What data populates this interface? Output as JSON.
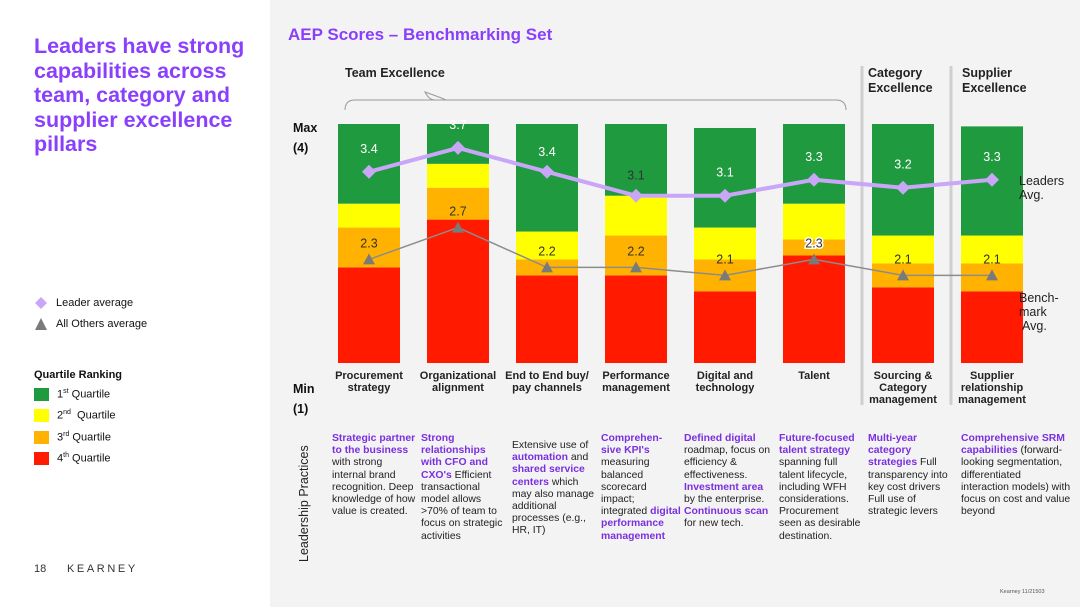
{
  "headline": "Leaders have strong capabilities across team, category and supplier excellence pillars",
  "legend": {
    "leader": {
      "label": "Leader average",
      "color": "#c9a6f7"
    },
    "others": {
      "label": "All Others average",
      "color": "#7a7a7a"
    }
  },
  "quartile": {
    "title": "Quartile Ranking",
    "items": [
      {
        "num": "1",
        "sup": "st",
        "word": " Quartile",
        "color": "#1f9a3e"
      },
      {
        "num": "2",
        "sup": "nd",
        "word": "  Quartile",
        "color": "#ffff00"
      },
      {
        "num": "3",
        "sup": "rd",
        "word": " Quartile",
        "color": "#ffb300"
      },
      {
        "num": "4",
        "sup": "th",
        "word": " Quartile",
        "color": "#ff1a00"
      }
    ]
  },
  "page_number": "18",
  "brand": "KEARNEY",
  "footer_note": "Kearney 11/21503",
  "chart_data": {
    "type": "bar",
    "title": "AEP Scores – Benchmarking Set",
    "pillars": [
      {
        "label": "Team Excellence"
      },
      {
        "label": "Category Excellence"
      },
      {
        "label": "Supplier Excellence"
      }
    ],
    "y_axis": {
      "max_label": "Max",
      "max_value_label": "(4)",
      "min_label": "Min",
      "min_value_label": "(1)",
      "range": [
        1,
        4
      ]
    },
    "categories": [
      "Procurement strategy",
      "Organizational alignment",
      "End to End buy/ pay channels",
      "Performance management",
      "Digital and technology",
      "Talent",
      "Sourcing & Category management",
      "Supplier relationship management"
    ],
    "quartile_boundaries": [
      [
        2.2,
        2.7,
        3.0,
        4.0
      ],
      [
        2.8,
        3.2,
        3.5,
        4.0
      ],
      [
        2.1,
        2.3,
        2.65,
        4.0
      ],
      [
        2.1,
        2.6,
        3.1,
        4.0
      ],
      [
        1.9,
        2.3,
        2.7,
        3.95
      ],
      [
        2.35,
        2.55,
        3.0,
        4.0
      ],
      [
        1.95,
        2.25,
        2.6,
        4.0
      ],
      [
        1.9,
        2.25,
        2.6,
        3.97
      ]
    ],
    "series": [
      {
        "name": "Leader average",
        "values": [
          3.4,
          3.7,
          3.4,
          3.1,
          3.1,
          3.3,
          3.2,
          3.3
        ]
      },
      {
        "name": "All Others average",
        "values": [
          2.3,
          2.7,
          2.2,
          2.2,
          2.1,
          2.3,
          2.1,
          2.1
        ]
      }
    ],
    "leader_label_values": [
      "3.4",
      "3.7",
      "3.4",
      "3.1",
      "3.1",
      "3.3",
      "3.2",
      "3.3"
    ],
    "others_label_values": [
      "2.3",
      "2.7",
      "2.2",
      "2.2",
      "2.1",
      "2.3",
      "2.1",
      "2.1"
    ],
    "series_end_labels": {
      "leaders": "Leaders Avg.",
      "benchmark": "Bench- mark Avg."
    }
  },
  "leadership": {
    "title": "Leadership Practices",
    "practices": [
      [
        {
          "t": "Strategic partner to the business",
          "h": true
        },
        {
          "t": " with strong internal brand recognition. Deep knowledge of how value is created.",
          "h": false
        }
      ],
      [
        {
          "t": "Strong relationships with CFO and CXO's",
          "h": true
        },
        {
          "t": " Efficient transactional model allows >70% of team to focus on strategic activities",
          "h": false
        }
      ],
      [
        {
          "t": "Extensive use of ",
          "h": false
        },
        {
          "t": "automation",
          "h": true
        },
        {
          "t": " and ",
          "h": false
        },
        {
          "t": "shared service centers",
          "h": true
        },
        {
          "t": " which may also manage additional processes (e.g., HR, IT)",
          "h": false
        }
      ],
      [
        {
          "t": "Comprehen-sive KPI's",
          "h": true
        },
        {
          "t": " measuring balanced scorecard impact; integrated ",
          "h": false
        },
        {
          "t": "digital performance management",
          "h": true
        }
      ],
      [
        {
          "t": "Defined digital",
          "h": true
        },
        {
          "t": " roadmap, focus on efficiency & effectiveness. ",
          "h": false
        },
        {
          "t": "Investment area",
          "h": true
        },
        {
          "t": " by the enterprise. ",
          "h": false
        },
        {
          "t": "Continuous scan",
          "h": true
        },
        {
          "t": " for new tech.",
          "h": false
        }
      ],
      [
        {
          "t": "Future-focused talent strategy",
          "h": true
        },
        {
          "t": " spanning full talent lifecycle, including WFH considerations. Procurement seen as desirable destination.",
          "h": false
        }
      ],
      [
        {
          "t": "Multi-year category strategies",
          "h": true
        },
        {
          "t": " Full transparency into key cost drivers Full use of strategic levers",
          "h": false
        }
      ],
      [
        {
          "t": "Comprehensive SRM capabilities",
          "h": true
        },
        {
          "t": " (forward-looking segmentation, differentiated interaction models) with focus on cost and value beyond",
          "h": false
        }
      ]
    ]
  }
}
